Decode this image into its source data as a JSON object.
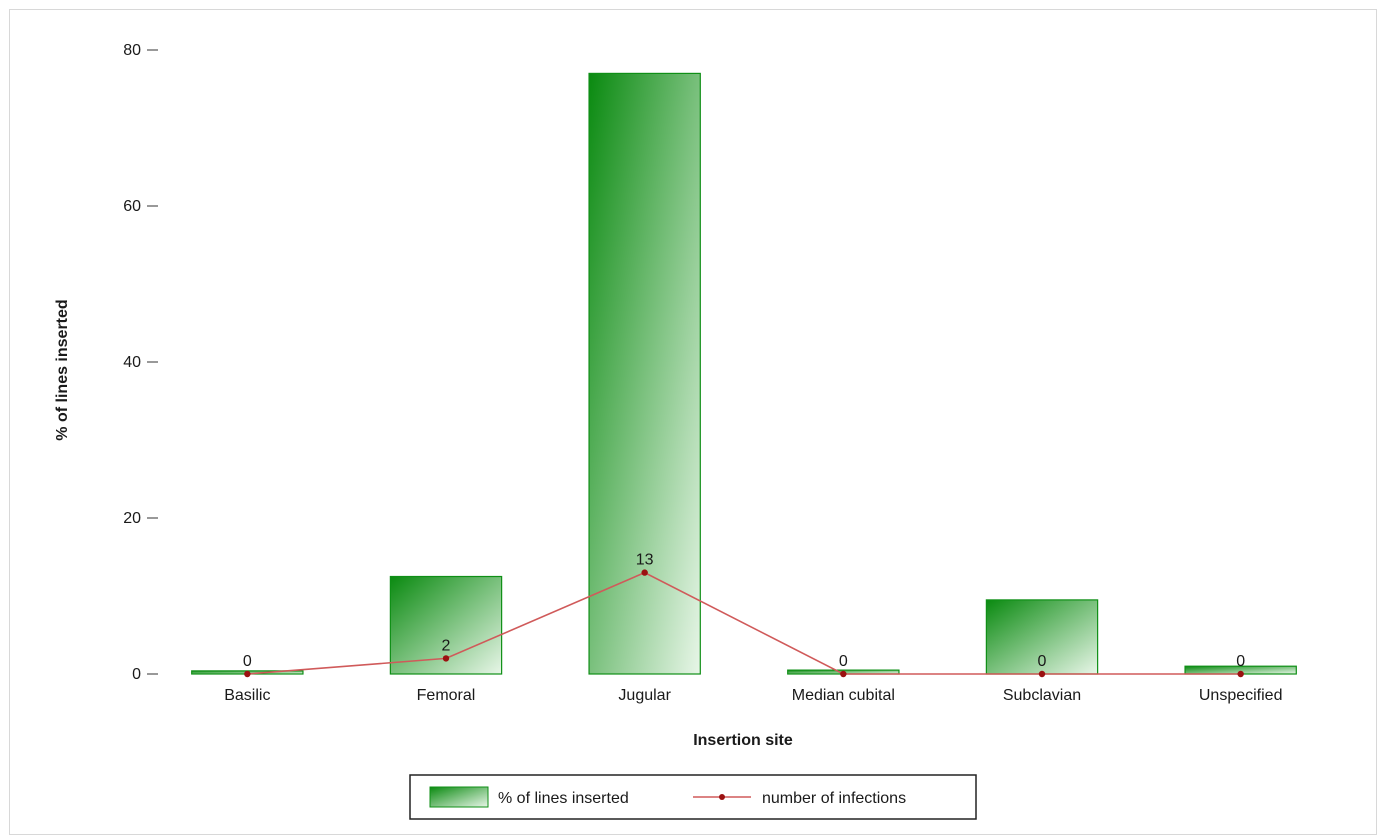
{
  "chart_data": {
    "type": "bar",
    "categories": [
      "Basilic",
      "Femoral",
      "Jugular",
      "Median cubital",
      "Subclavian",
      "Unspecified"
    ],
    "series": [
      {
        "name": "% of lines inserted",
        "kind": "bar",
        "values": [
          0.4,
          12.5,
          77.0,
          0.5,
          9.5,
          1.0
        ]
      },
      {
        "name": "number of infections",
        "kind": "line",
        "values": [
          0,
          2,
          13,
          0,
          0,
          0
        ],
        "data_labels": [
          "0",
          "2",
          "13",
          "0",
          "0",
          "0"
        ]
      }
    ],
    "xlabel": "Insertion site",
    "ylabel": "% of lines inserted",
    "ylim": [
      0,
      80
    ],
    "yticks": [
      0,
      20,
      40,
      60,
      80
    ],
    "ytick_labels": [
      "0",
      "20",
      "40",
      "60",
      "80"
    ],
    "legend_position": "bottom",
    "colors": {
      "bar_dark": "#0a8a10",
      "bar_light": "#e8f6e8",
      "bar_border": "#0f8f16",
      "line": "#d05a5a",
      "marker": "#9b1111"
    }
  }
}
